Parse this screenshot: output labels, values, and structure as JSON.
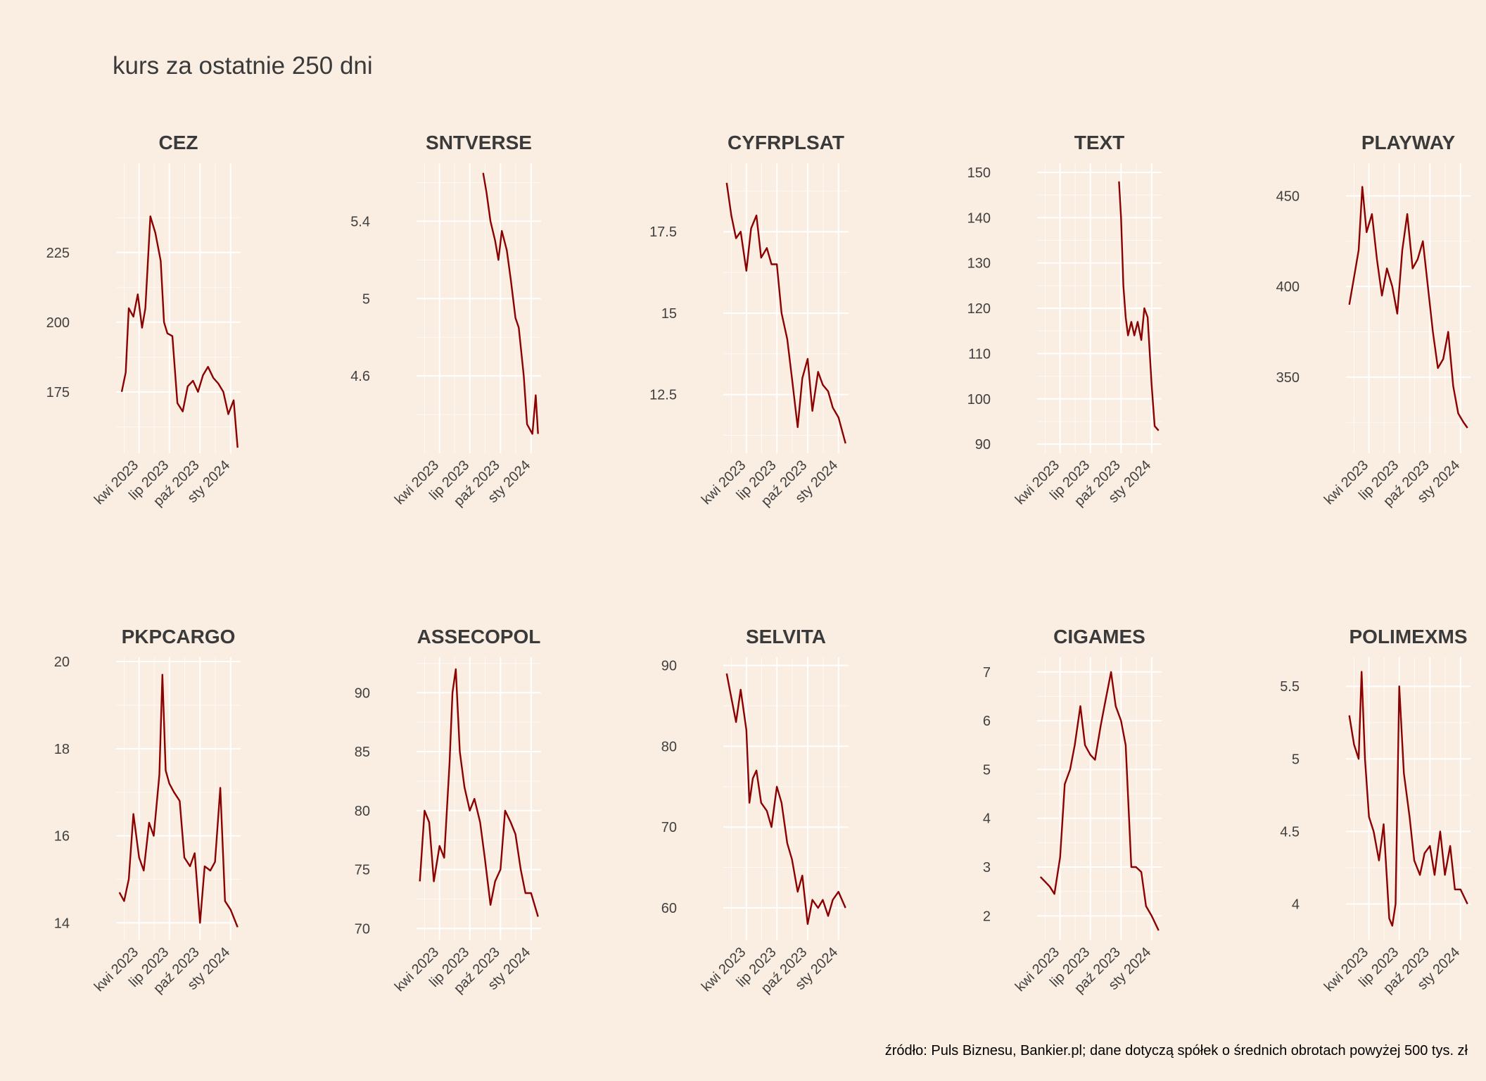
{
  "title": "kurs za ostatnie 250 dni",
  "source": "źródło: Puls Biznesu, Bankier.pl; dane dotyczą spółek o średnich obrotach powyżej 500 tys. zł",
  "colors": {
    "background": "#faede1",
    "line": "#8b0000",
    "grid": "#ffffff",
    "text": "#404040"
  },
  "chart_data": [
    {
      "type": "line",
      "title": "CEZ",
      "xlim": [
        "2023-01-22",
        "2024-01-31"
      ],
      "ylim": [
        153,
        257
      ],
      "xticks": [
        "kwi 2023",
        "lip 2023",
        "paź 2023",
        "sty 2024"
      ],
      "yticks": [
        175,
        200,
        225
      ],
      "x": [
        "2023-02-08",
        "2023-02-20",
        "2023-03-01",
        "2023-03-15",
        "2023-03-28",
        "2023-04-10",
        "2023-04-20",
        "2023-05-05",
        "2023-05-20",
        "2023-06-05",
        "2023-06-15",
        "2023-06-25",
        "2023-07-10",
        "2023-07-25",
        "2023-08-10",
        "2023-08-25",
        "2023-09-10",
        "2023-09-25",
        "2023-10-10",
        "2023-10-25",
        "2023-11-10",
        "2023-11-25",
        "2023-12-10",
        "2023-12-25",
        "2024-01-10",
        "2024-01-22"
      ],
      "y": [
        175,
        182,
        205,
        202,
        210,
        198,
        205,
        238,
        232,
        222,
        200,
        196,
        195,
        171,
        168,
        177,
        179,
        175,
        181,
        184,
        180,
        178,
        175,
        167,
        172,
        155
      ]
    },
    {
      "type": "line",
      "title": "SNTVERSE",
      "xlim": [
        "2023-01-22",
        "2024-01-31"
      ],
      "ylim": [
        4.2,
        5.7
      ],
      "xticks": [
        "kwi 2023",
        "lip 2023",
        "paź 2023",
        "sty 2024"
      ],
      "yticks": [
        4.6,
        5.0,
        5.4
      ],
      "x": [
        "2023-08-10",
        "2023-08-20",
        "2023-09-01",
        "2023-09-15",
        "2023-09-25",
        "2023-10-05",
        "2023-10-20",
        "2023-11-01",
        "2023-11-15",
        "2023-11-25",
        "2023-12-10",
        "2023-12-20",
        "2024-01-05",
        "2024-01-15",
        "2024-01-22"
      ],
      "y": [
        5.65,
        5.55,
        5.4,
        5.3,
        5.2,
        5.35,
        5.25,
        5.1,
        4.9,
        4.85,
        4.6,
        4.35,
        4.3,
        4.5,
        4.3
      ]
    },
    {
      "type": "line",
      "title": "CYFRPLSAT",
      "xlim": [
        "2023-01-22",
        "2024-01-31"
      ],
      "ylim": [
        10.7,
        19.6
      ],
      "xticks": [
        "kwi 2023",
        "lip 2023",
        "paź 2023",
        "sty 2024"
      ],
      "yticks": [
        12.5,
        15.0,
        17.5
      ],
      "x": [
        "2023-02-01",
        "2023-02-15",
        "2023-03-01",
        "2023-03-15",
        "2023-04-01",
        "2023-04-15",
        "2023-05-01",
        "2023-05-15",
        "2023-06-01",
        "2023-06-15",
        "2023-07-01",
        "2023-07-15",
        "2023-08-01",
        "2023-08-15",
        "2023-09-01",
        "2023-09-15",
        "2023-10-01",
        "2023-10-15",
        "2023-11-01",
        "2023-11-15",
        "2023-12-01",
        "2023-12-15",
        "2024-01-01",
        "2024-01-22"
      ],
      "y": [
        19.0,
        18.0,
        17.3,
        17.5,
        16.3,
        17.6,
        18.0,
        16.7,
        17.0,
        16.5,
        16.5,
        15.0,
        14.2,
        13.0,
        11.5,
        13.0,
        13.6,
        12.0,
        13.2,
        12.8,
        12.6,
        12.1,
        11.8,
        11.0
      ]
    },
    {
      "type": "line",
      "title": "TEXT",
      "xlim": [
        "2023-01-22",
        "2024-01-31"
      ],
      "ylim": [
        88,
        152
      ],
      "xticks": [
        "kwi 2023",
        "lip 2023",
        "paź 2023",
        "sty 2024"
      ],
      "yticks": [
        90,
        100,
        110,
        120,
        130,
        140,
        150
      ],
      "x": [
        "2023-09-25",
        "2023-10-01",
        "2023-10-08",
        "2023-10-15",
        "2023-10-22",
        "2023-11-01",
        "2023-11-10",
        "2023-11-20",
        "2023-12-01",
        "2023-12-10",
        "2023-12-20",
        "2024-01-01",
        "2024-01-10",
        "2024-01-22"
      ],
      "y": [
        148,
        140,
        125,
        118,
        114,
        117,
        114,
        117,
        113,
        120,
        118,
        103,
        94,
        93
      ]
    },
    {
      "type": "line",
      "title": "PLAYWAY",
      "xlim": [
        "2023-01-22",
        "2024-01-31"
      ],
      "ylim": [
        308,
        468
      ],
      "xticks": [
        "kwi 2023",
        "lip 2023",
        "paź 2023",
        "sty 2024"
      ],
      "yticks": [
        350,
        400,
        450
      ],
      "x": [
        "2023-02-01",
        "2023-02-15",
        "2023-03-01",
        "2023-03-12",
        "2023-03-25",
        "2023-04-10",
        "2023-04-25",
        "2023-05-10",
        "2023-05-25",
        "2023-06-10",
        "2023-06-25",
        "2023-07-10",
        "2023-07-25",
        "2023-08-10",
        "2023-08-25",
        "2023-09-10",
        "2023-09-25",
        "2023-10-10",
        "2023-10-25",
        "2023-11-10",
        "2023-11-25",
        "2023-12-10",
        "2023-12-25",
        "2024-01-10",
        "2024-01-22"
      ],
      "y": [
        390,
        405,
        420,
        455,
        430,
        440,
        415,
        395,
        410,
        400,
        385,
        420,
        440,
        410,
        415,
        425,
        400,
        375,
        355,
        360,
        375,
        345,
        330,
        325,
        322
      ]
    },
    {
      "type": "line",
      "title": "PKPCARGO",
      "xlim": [
        "2023-01-22",
        "2024-01-31"
      ],
      "ylim": [
        13.6,
        20.1
      ],
      "xticks": [
        "kwi 2023",
        "lip 2023",
        "paź 2023",
        "sty 2024"
      ],
      "yticks": [
        14,
        16,
        18,
        20
      ],
      "x": [
        "2023-02-01",
        "2023-02-15",
        "2023-03-01",
        "2023-03-15",
        "2023-04-01",
        "2023-04-15",
        "2023-05-01",
        "2023-05-15",
        "2023-06-01",
        "2023-06-10",
        "2023-06-20",
        "2023-07-01",
        "2023-07-15",
        "2023-08-01",
        "2023-08-15",
        "2023-09-01",
        "2023-09-15",
        "2023-10-01",
        "2023-10-15",
        "2023-11-01",
        "2023-11-15",
        "2023-12-01",
        "2023-12-15",
        "2024-01-01",
        "2024-01-22"
      ],
      "y": [
        14.7,
        14.5,
        15.0,
        16.5,
        15.5,
        15.2,
        16.3,
        16.0,
        17.4,
        19.7,
        17.5,
        17.2,
        17.0,
        16.8,
        15.5,
        15.3,
        15.6,
        14.0,
        15.3,
        15.2,
        15.4,
        17.1,
        14.5,
        14.3,
        13.9
      ]
    },
    {
      "type": "line",
      "title": "ASSECOPOL",
      "xlim": [
        "2023-01-22",
        "2024-01-31"
      ],
      "ylim": [
        69,
        93
      ],
      "xticks": [
        "kwi 2023",
        "lip 2023",
        "paź 2023",
        "sty 2024"
      ],
      "yticks": [
        70,
        75,
        80,
        85,
        90
      ],
      "x": [
        "2023-02-01",
        "2023-02-15",
        "2023-03-01",
        "2023-03-15",
        "2023-04-01",
        "2023-04-15",
        "2023-05-01",
        "2023-05-10",
        "2023-05-20",
        "2023-06-01",
        "2023-06-15",
        "2023-07-01",
        "2023-07-15",
        "2023-08-01",
        "2023-08-15",
        "2023-09-01",
        "2023-09-15",
        "2023-10-01",
        "2023-10-15",
        "2023-11-01",
        "2023-11-15",
        "2023-12-01",
        "2023-12-15",
        "2024-01-01",
        "2024-01-22"
      ],
      "y": [
        74,
        80,
        79,
        74,
        77,
        76,
        84,
        90,
        92,
        85,
        82,
        80,
        81,
        79,
        76,
        72,
        74,
        75,
        80,
        79,
        78,
        75,
        73,
        73,
        71
      ]
    },
    {
      "type": "line",
      "title": "SELVITA",
      "xlim": [
        "2023-01-22",
        "2024-01-31"
      ],
      "ylim": [
        56,
        91
      ],
      "xticks": [
        "kwi 2023",
        "lip 2023",
        "paź 2023",
        "sty 2024"
      ],
      "yticks": [
        60,
        70,
        80,
        90
      ],
      "x": [
        "2023-02-01",
        "2023-02-15",
        "2023-03-01",
        "2023-03-15",
        "2023-04-01",
        "2023-04-10",
        "2023-04-20",
        "2023-05-01",
        "2023-05-15",
        "2023-06-01",
        "2023-06-15",
        "2023-07-01",
        "2023-07-15",
        "2023-08-01",
        "2023-08-15",
        "2023-09-01",
        "2023-09-15",
        "2023-10-01",
        "2023-10-15",
        "2023-11-01",
        "2023-11-15",
        "2023-12-01",
        "2023-12-15",
        "2024-01-01",
        "2024-01-22"
      ],
      "y": [
        89,
        86,
        83,
        87,
        82,
        73,
        76,
        77,
        73,
        72,
        70,
        75,
        73,
        68,
        66,
        62,
        64,
        58,
        61,
        60,
        61,
        59,
        61,
        62,
        60
      ]
    },
    {
      "type": "line",
      "title": "CIGAMES",
      "xlim": [
        "2023-01-22",
        "2024-01-31"
      ],
      "ylim": [
        1.5,
        7.3
      ],
      "xticks": [
        "kwi 2023",
        "lip 2023",
        "paź 2023",
        "sty 2024"
      ],
      "yticks": [
        2,
        3,
        4,
        5,
        6,
        7
      ],
      "x": [
        "2023-02-01",
        "2023-02-15",
        "2023-03-01",
        "2023-03-15",
        "2023-04-01",
        "2023-04-15",
        "2023-05-01",
        "2023-05-15",
        "2023-06-01",
        "2023-06-15",
        "2023-07-01",
        "2023-07-15",
        "2023-08-01",
        "2023-08-15",
        "2023-09-01",
        "2023-09-15",
        "2023-10-01",
        "2023-10-15",
        "2023-11-01",
        "2023-11-15",
        "2023-12-01",
        "2023-12-15",
        "2024-01-01",
        "2024-01-22"
      ],
      "y": [
        2.8,
        2.7,
        2.6,
        2.45,
        3.2,
        4.7,
        5.0,
        5.5,
        6.3,
        5.5,
        5.3,
        5.2,
        5.9,
        6.4,
        7.0,
        6.3,
        6.0,
        5.5,
        3.0,
        3.0,
        2.9,
        2.2,
        2.0,
        1.7
      ]
    },
    {
      "type": "line",
      "title": "POLIMEXMS",
      "xlim": [
        "2023-01-22",
        "2024-01-31"
      ],
      "ylim": [
        3.75,
        5.7
      ],
      "xticks": [
        "kwi 2023",
        "lip 2023",
        "paź 2023",
        "sty 2024"
      ],
      "yticks": [
        4.0,
        4.5,
        5.0,
        5.5
      ],
      "x": [
        "2023-02-01",
        "2023-02-15",
        "2023-03-01",
        "2023-03-10",
        "2023-03-20",
        "2023-04-01",
        "2023-04-15",
        "2023-05-01",
        "2023-05-15",
        "2023-06-01",
        "2023-06-10",
        "2023-06-20",
        "2023-07-01",
        "2023-07-15",
        "2023-08-01",
        "2023-08-15",
        "2023-09-01",
        "2023-09-15",
        "2023-10-01",
        "2023-10-15",
        "2023-11-01",
        "2023-11-15",
        "2023-12-01",
        "2023-12-15",
        "2024-01-01",
        "2024-01-22"
      ],
      "y": [
        5.3,
        5.1,
        5.0,
        5.6,
        5.0,
        4.6,
        4.5,
        4.3,
        4.55,
        3.9,
        3.85,
        4.0,
        5.5,
        4.9,
        4.6,
        4.3,
        4.2,
        4.35,
        4.4,
        4.2,
        4.5,
        4.2,
        4.4,
        4.1,
        4.1,
        4.0
      ]
    }
  ]
}
